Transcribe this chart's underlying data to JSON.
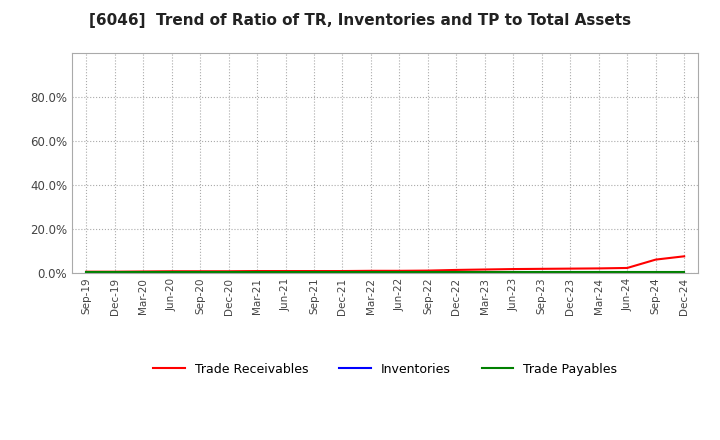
{
  "title": "[6046]  Trend of Ratio of TR, Inventories and TP to Total Assets",
  "x_labels": [
    "Sep-19",
    "Dec-19",
    "Mar-20",
    "Jun-20",
    "Sep-20",
    "Dec-20",
    "Mar-21",
    "Jun-21",
    "Sep-21",
    "Dec-21",
    "Mar-22",
    "Jun-22",
    "Sep-22",
    "Dec-22",
    "Mar-23",
    "Jun-23",
    "Sep-23",
    "Dec-23",
    "Mar-24",
    "Jun-24",
    "Sep-24",
    "Dec-24"
  ],
  "trade_receivables": [
    0.005,
    0.005,
    0.006,
    0.007,
    0.007,
    0.007,
    0.008,
    0.008,
    0.008,
    0.008,
    0.009,
    0.009,
    0.01,
    0.013,
    0.015,
    0.017,
    0.018,
    0.019,
    0.02,
    0.022,
    0.06,
    0.075
  ],
  "inventories": [
    0.001,
    0.001,
    0.001,
    0.001,
    0.001,
    0.001,
    0.001,
    0.001,
    0.001,
    0.001,
    0.001,
    0.001,
    0.001,
    0.001,
    0.001,
    0.001,
    0.001,
    0.001,
    0.001,
    0.001,
    0.001,
    0.001
  ],
  "trade_payables": [
    0.003,
    0.003,
    0.003,
    0.003,
    0.003,
    0.003,
    0.003,
    0.003,
    0.003,
    0.003,
    0.003,
    0.003,
    0.003,
    0.003,
    0.003,
    0.003,
    0.003,
    0.003,
    0.003,
    0.003,
    0.003,
    0.003
  ],
  "tr_color": "#ff0000",
  "inv_color": "#0000ff",
  "tp_color": "#008000",
  "ylim": [
    0.0,
    1.0
  ],
  "yticks": [
    0.0,
    0.2,
    0.4,
    0.6,
    0.8
  ],
  "background_color": "#ffffff",
  "grid_color": "#aaaaaa",
  "title_fontsize": 11,
  "legend_labels": [
    "Trade Receivables",
    "Inventories",
    "Trade Payables"
  ]
}
